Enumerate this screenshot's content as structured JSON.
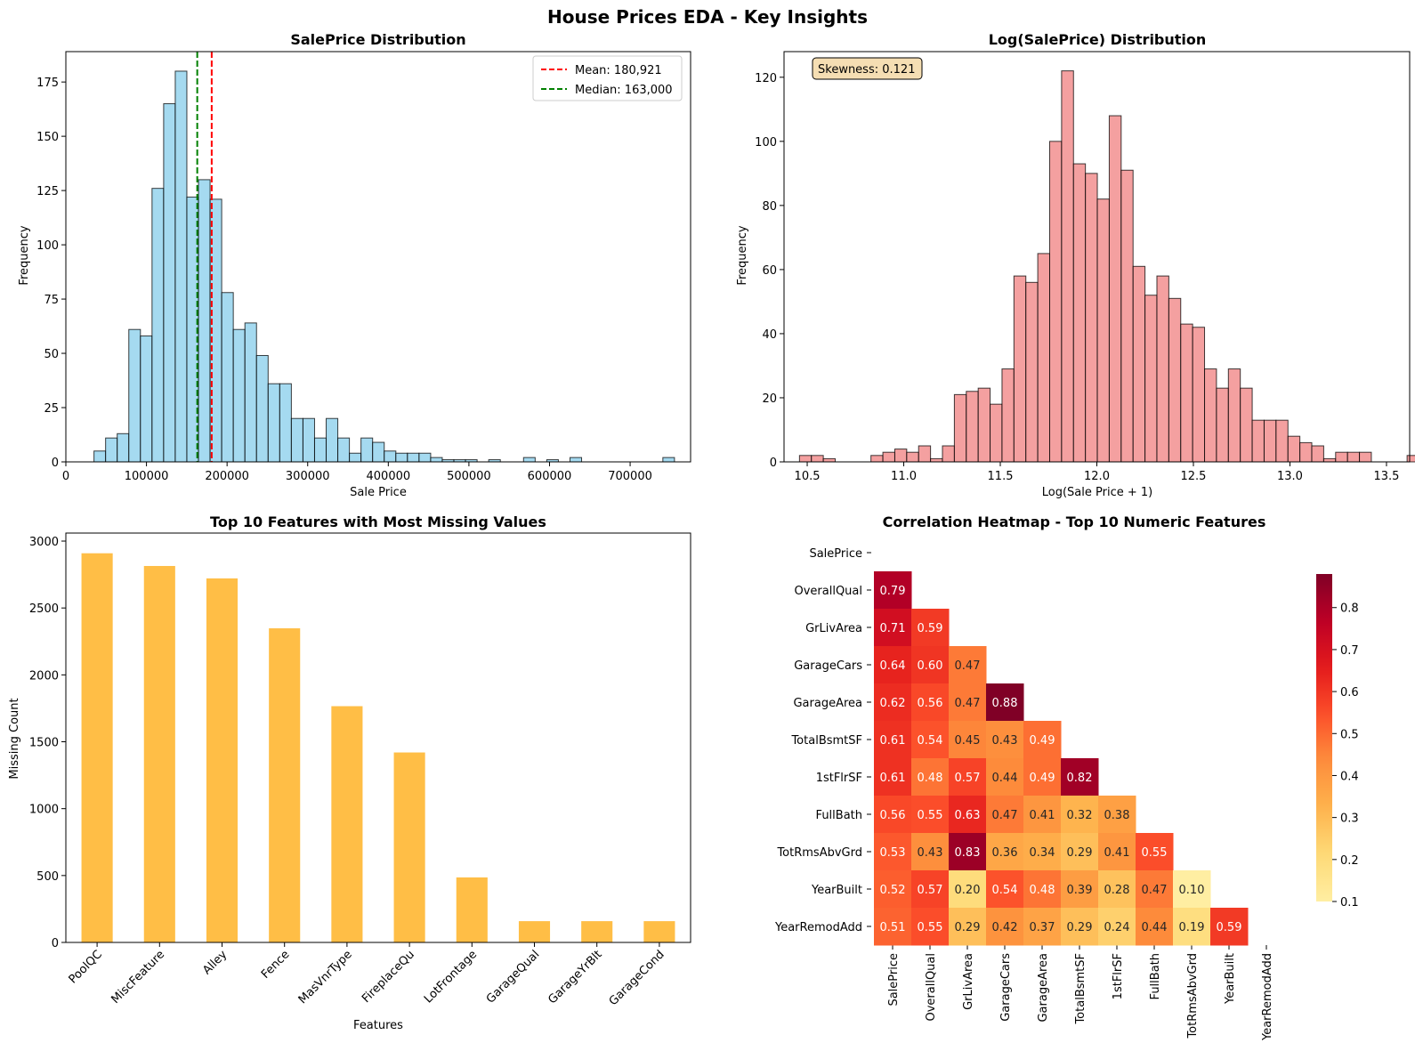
{
  "figure": {
    "title": "House Prices EDA - Key Insights"
  },
  "chart_data": [
    {
      "type": "bar",
      "title": "SalePrice Distribution",
      "xlabel": "Sale Price",
      "ylabel": "Frequency",
      "xlim": [
        0,
        775000
      ],
      "ylim": [
        0,
        189
      ],
      "xticks": [
        "0",
        "100000",
        "200000",
        "300000",
        "400000",
        "500000",
        "600000",
        "700000"
      ],
      "yticks": [
        "0",
        "25",
        "50",
        "75",
        "100",
        "125",
        "150",
        "175"
      ],
      "bin_start": 34900,
      "bin_width": 14402,
      "values": [
        5,
        11,
        13,
        61,
        58,
        126,
        165,
        180,
        122,
        130,
        121,
        78,
        61,
        64,
        49,
        36,
        36,
        20,
        20,
        11,
        20,
        11,
        4,
        11,
        9,
        5,
        4,
        4,
        4,
        2,
        1,
        1,
        1,
        0,
        1,
        0,
        0,
        2,
        0,
        1,
        0,
        2,
        0,
        0,
        0,
        0,
        0,
        0,
        0,
        2
      ],
      "color": "#87ceeb",
      "vlines": [
        {
          "value": 180921,
          "color": "#ff0000",
          "label": "Mean: 180,921"
        },
        {
          "value": 163000,
          "color": "#008000",
          "label": "Median: 163,000"
        }
      ],
      "legend": "top-right",
      "grid": false
    },
    {
      "type": "bar",
      "title": "Log(SalePrice) Distribution",
      "xlabel": "Log(Sale Price + 1)",
      "ylabel": "Frequency",
      "xlim": [
        10.38,
        13.62
      ],
      "ylim": [
        0,
        128
      ],
      "xticks": [
        "10.5",
        "11.0",
        "11.5",
        "12.0",
        "12.5",
        "13.0",
        "13.5"
      ],
      "yticks": [
        "0",
        "20",
        "40",
        "60",
        "80",
        "100",
        "120"
      ],
      "bin_start": 10.46,
      "bin_width": 0.0617,
      "values": [
        2,
        2,
        1,
        0,
        0,
        0,
        2,
        3,
        4,
        3,
        5,
        1,
        5,
        21,
        22,
        23,
        18,
        29,
        58,
        56,
        65,
        100,
        122,
        93,
        90,
        82,
        108,
        91,
        61,
        52,
        58,
        51,
        43,
        42,
        29,
        23,
        29,
        23,
        13,
        13,
        13,
        8,
        6,
        5,
        1,
        3,
        3,
        3,
        0,
        0,
        0,
        2
      ],
      "color": "#f08080",
      "annotation": "Skewness: 0.121",
      "grid": false
    },
    {
      "type": "bar",
      "title": "Top 10 Features with Most Missing Values",
      "xlabel": "Features",
      "ylabel": "Missing Count",
      "ylim": [
        0,
        3060
      ],
      "yticks": [
        "0",
        "500",
        "1000",
        "1500",
        "2000",
        "2500",
        "3000"
      ],
      "categories": [
        "PoolQC",
        "MiscFeature",
        "Alley",
        "Fence",
        "MasVnrType",
        "FireplaceQu",
        "LotFrontage",
        "GarageQual",
        "GarageYrBlt",
        "GarageCond"
      ],
      "values": [
        2909,
        2814,
        2721,
        2348,
        1766,
        1420,
        486,
        159,
        159,
        159
      ],
      "color": "#ffb732",
      "grid": false
    },
    {
      "type": "heatmap",
      "title": "Correlation Heatmap - Top 10 Numeric Features",
      "labels": [
        "SalePrice",
        "OverallQual",
        "GrLivArea",
        "GarageCars",
        "GarageArea",
        "TotalBsmtSF",
        "1stFlrSF",
        "FullBath",
        "TotRmsAbvGrd",
        "YearBuilt",
        "YearRemodAdd"
      ],
      "lower_triangle": [
        [],
        [
          0.79
        ],
        [
          0.71,
          0.59
        ],
        [
          0.64,
          0.6,
          0.47
        ],
        [
          0.62,
          0.56,
          0.47,
          0.88
        ],
        [
          0.61,
          0.54,
          0.45,
          0.43,
          0.49
        ],
        [
          0.61,
          0.48,
          0.57,
          0.44,
          0.49,
          0.82
        ],
        [
          0.56,
          0.55,
          0.63,
          0.47,
          0.41,
          0.32,
          0.38
        ],
        [
          0.53,
          0.43,
          0.83,
          0.36,
          0.34,
          0.29,
          0.41,
          0.55
        ],
        [
          0.52,
          0.57,
          0.2,
          0.54,
          0.48,
          0.39,
          0.28,
          0.47,
          0.1
        ],
        [
          0.51,
          0.55,
          0.29,
          0.42,
          0.37,
          0.29,
          0.24,
          0.44,
          0.19,
          0.59
        ]
      ],
      "colormap": "YlOrRd",
      "vmin": 0.1,
      "vmax": 0.88,
      "colorbar_ticks": [
        "0.1",
        "0.2",
        "0.3",
        "0.4",
        "0.5",
        "0.6",
        "0.7",
        "0.8"
      ]
    }
  ]
}
